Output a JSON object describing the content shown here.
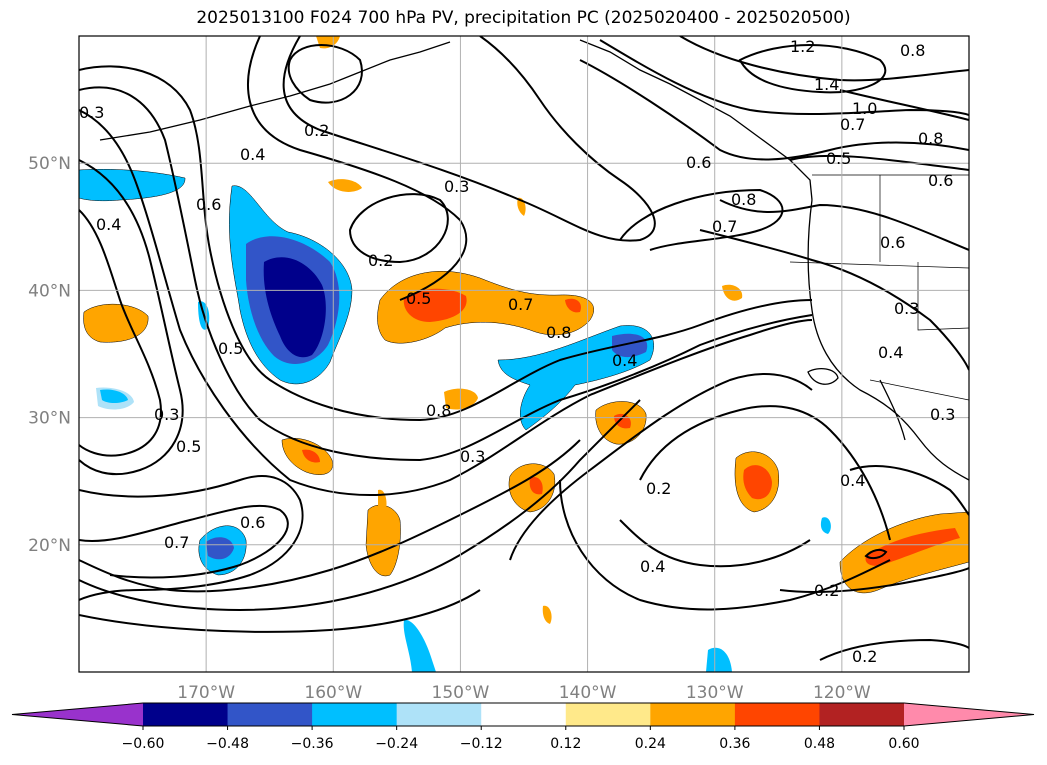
{
  "title": "2025013100 F024 700 hPa PV, precipitation PC (2025020400 - 2025020500)",
  "chart_data": {
    "type": "heatmap",
    "title": "2025013100 F024 700 hPa PV, precipitation PC (2025020400 - 2025020500)",
    "map_region": {
      "lon_range": [
        -180,
        -110
      ],
      "lat_range": [
        10,
        60
      ]
    },
    "grid": true,
    "lat_ticks": [
      {
        "value": 50,
        "label": "50°N"
      },
      {
        "value": 40,
        "label": "40°N"
      },
      {
        "value": 30,
        "label": "30°N"
      },
      {
        "value": 20,
        "label": "20°N"
      }
    ],
    "lon_ticks": [
      {
        "value": -170,
        "label": "170°W"
      },
      {
        "value": -160,
        "label": "160°W"
      },
      {
        "value": -150,
        "label": "150°W"
      },
      {
        "value": -140,
        "label": "140°W"
      },
      {
        "value": -130,
        "label": "130°W"
      },
      {
        "value": -120,
        "label": "120°W"
      }
    ],
    "colorbar": {
      "orientation": "horizontal",
      "extend": "both",
      "bounds": [
        -0.6,
        -0.48,
        -0.36,
        -0.24,
        -0.12,
        0.12,
        0.24,
        0.36,
        0.48,
        0.6
      ],
      "tick_labels": [
        "−0.60",
        "−0.48",
        "−0.36",
        "−0.24",
        "−0.12",
        "0.12",
        "0.24",
        "0.36",
        "0.48",
        "0.60"
      ],
      "colors": [
        "#9932cc",
        "#00008b",
        "#3255c8",
        "#00bfff",
        "#aee2f8",
        "#ffffff",
        "#ffe98a",
        "#ffa500",
        "#ff4500",
        "#b22222",
        "#ff8aab"
      ]
    },
    "contour_labels": [
      "1.2",
      "1.4",
      "1.0",
      "0.8",
      "0.7",
      "0.5",
      "0.6",
      "0.8",
      "0.7",
      "0.6",
      "0.8",
      "0.2",
      "0.3",
      "0.4",
      "0.6",
      "0.3",
      "0.4",
      "0.5",
      "0.2",
      "0.5",
      "0.7",
      "0.8",
      "0.4",
      "0.8",
      "0.3",
      "0.5",
      "0.3",
      "0.6",
      "0.7",
      "0.2",
      "0.4",
      "0.6",
      "0.3",
      "0.4",
      "0.3",
      "0.4",
      "0.2",
      "0.2"
    ]
  }
}
